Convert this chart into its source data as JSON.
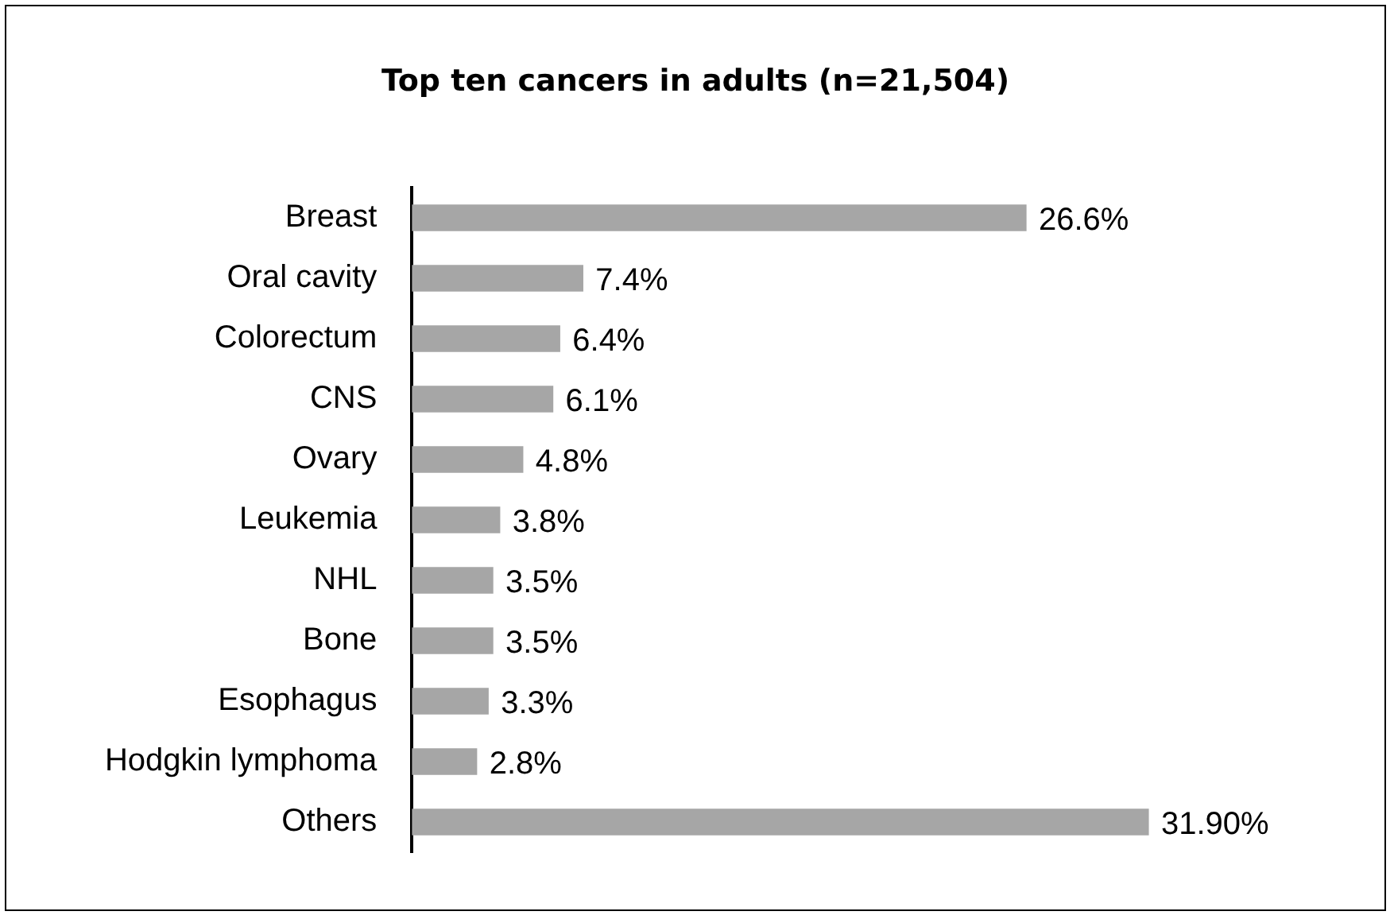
{
  "chart_data": {
    "type": "bar",
    "orientation": "horizontal",
    "title": "Top ten cancers in adults (n=21,504)",
    "categories": [
      "Breast",
      "Oral cavity",
      "Colorectum",
      "CNS",
      "Ovary",
      "Leukemia",
      "NHL",
      "Bone",
      "Esophagus",
      "Hodgkin lymphoma",
      "Others"
    ],
    "values": [
      26.6,
      7.4,
      6.4,
      6.1,
      4.8,
      3.8,
      3.5,
      3.5,
      3.3,
      2.8,
      31.9
    ],
    "value_labels": [
      "26.6%",
      "7.4%",
      "6.4%",
      "6.1%",
      "4.8%",
      "3.8%",
      "3.5%",
      "3.5%",
      "3.3%",
      "2.8%",
      "31.90%"
    ],
    "color": "#a6a6a6",
    "grid": false,
    "legend": false
  }
}
